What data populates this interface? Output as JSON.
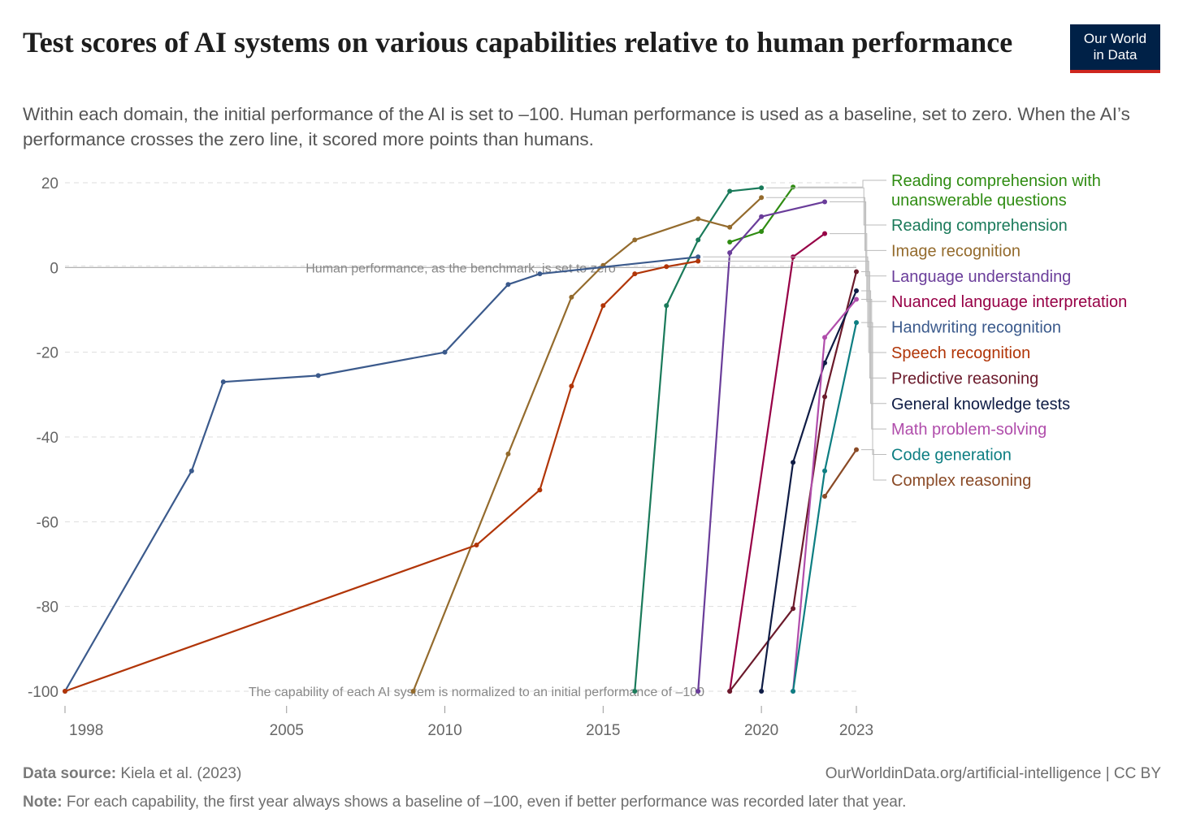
{
  "header": {
    "title": "Test scores of AI systems on various capabilities relative to human performance",
    "subtitle": "Within each domain, the initial performance of the AI is set to –100. Human performance is used as a baseline, set to zero. When the AI’s performance crosses the zero line, it scored more points than humans.",
    "logo_line1": "Our World",
    "logo_line2": "in Data"
  },
  "footer": {
    "source_label": "Data source:",
    "source_text": "Kiela et al. (2023)",
    "url_text": "OurWorldinData.org/artificial-intelligence | CC BY",
    "note_label": "Note:",
    "note_text": "For each capability, the first year always shows a baseline of –100, even if better performance was recorded later that year."
  },
  "colors": {
    "grid": "#dddddd",
    "axis_text": "#666666",
    "annotation": "#888888",
    "logo_bg": "#002147",
    "logo_accent": "#ce261e"
  },
  "chart_data": {
    "type": "line",
    "xlim": [
      1998,
      2023
    ],
    "ylim": [
      -100,
      20
    ],
    "yticks": [
      20,
      0,
      -20,
      -40,
      -60,
      -80,
      -100
    ],
    "xticks": [
      1998,
      2005,
      2010,
      2015,
      2020,
      2023
    ],
    "grid": true,
    "legend_position": "right",
    "annotations": [
      {
        "text": "Human performance, as the benchmark, is set to zero",
        "x": 2010.5,
        "y": 0
      },
      {
        "text": "The capability of each AI system is normalized to an initial performance of –100",
        "x": 2011,
        "y": -100
      }
    ],
    "series": [
      {
        "name": "Reading comprehension with unanswerable questions",
        "color": "#2f8c12",
        "points": [
          [
            2019,
            6
          ],
          [
            2020,
            8.5
          ],
          [
            2021,
            19
          ]
        ]
      },
      {
        "name": "Reading comprehension",
        "color": "#1a7a5a",
        "points": [
          [
            2016,
            -100
          ],
          [
            2017,
            -9
          ],
          [
            2018,
            6.5
          ],
          [
            2019,
            18
          ],
          [
            2020,
            18.8
          ]
        ]
      },
      {
        "name": "Image recognition",
        "color": "#946b2d",
        "points": [
          [
            2009,
            -100
          ],
          [
            2012,
            -44
          ],
          [
            2014,
            -7
          ],
          [
            2015,
            0.5
          ],
          [
            2016,
            6.5
          ],
          [
            2018,
            11.5
          ],
          [
            2019,
            9.5
          ],
          [
            2020,
            16.5
          ]
        ]
      },
      {
        "name": "Language understanding",
        "color": "#6a3d9a",
        "points": [
          [
            2018,
            -100
          ],
          [
            2019,
            3.5
          ],
          [
            2020,
            12
          ],
          [
            2022,
            15.5
          ]
        ]
      },
      {
        "name": "Nuanced language interpretation",
        "color": "#970046",
        "points": [
          [
            2019,
            -100
          ],
          [
            2021,
            2.5
          ],
          [
            2022,
            8
          ]
        ]
      },
      {
        "name": "Handwriting recognition",
        "color": "#3b5a8c",
        "points": [
          [
            1998,
            -100
          ],
          [
            2002,
            -48
          ],
          [
            2003,
            -27
          ],
          [
            2006,
            -25.5
          ],
          [
            2010,
            -20
          ],
          [
            2012,
            -4
          ],
          [
            2013,
            -1.5
          ],
          [
            2018,
            2.5
          ]
        ]
      },
      {
        "name": "Speech recognition",
        "color": "#b13507",
        "points": [
          [
            1998,
            -100
          ],
          [
            2011,
            -65.5
          ],
          [
            2013,
            -52.5
          ],
          [
            2014,
            -28
          ],
          [
            2015,
            -9
          ],
          [
            2016,
            -1.5
          ],
          [
            2017,
            0.2
          ],
          [
            2018,
            1.5
          ]
        ]
      },
      {
        "name": "Predictive reasoning",
        "color": "#6b1a2b",
        "points": [
          [
            2019,
            -100
          ],
          [
            2021,
            -80.5
          ],
          [
            2022,
            -30.5
          ],
          [
            2023,
            -1
          ]
        ]
      },
      {
        "name": "General knowledge tests",
        "color": "#0f1c45",
        "points": [
          [
            2020,
            -100
          ],
          [
            2021,
            -46
          ],
          [
            2022,
            -22.5
          ],
          [
            2023,
            -5.5
          ]
        ]
      },
      {
        "name": "Math problem-solving",
        "color": "#b04dab",
        "points": [
          [
            2021,
            -100
          ],
          [
            2022,
            -16.5
          ],
          [
            2023,
            -7.5
          ]
        ]
      },
      {
        "name": "Code generation",
        "color": "#0d7e82",
        "points": [
          [
            2021,
            -100
          ],
          [
            2022,
            -48
          ],
          [
            2023,
            -13
          ]
        ]
      },
      {
        "name": "Complex reasoning",
        "color": "#8a4a26",
        "points": [
          [
            2022,
            -54
          ],
          [
            2023,
            -43
          ]
        ]
      }
    ]
  }
}
